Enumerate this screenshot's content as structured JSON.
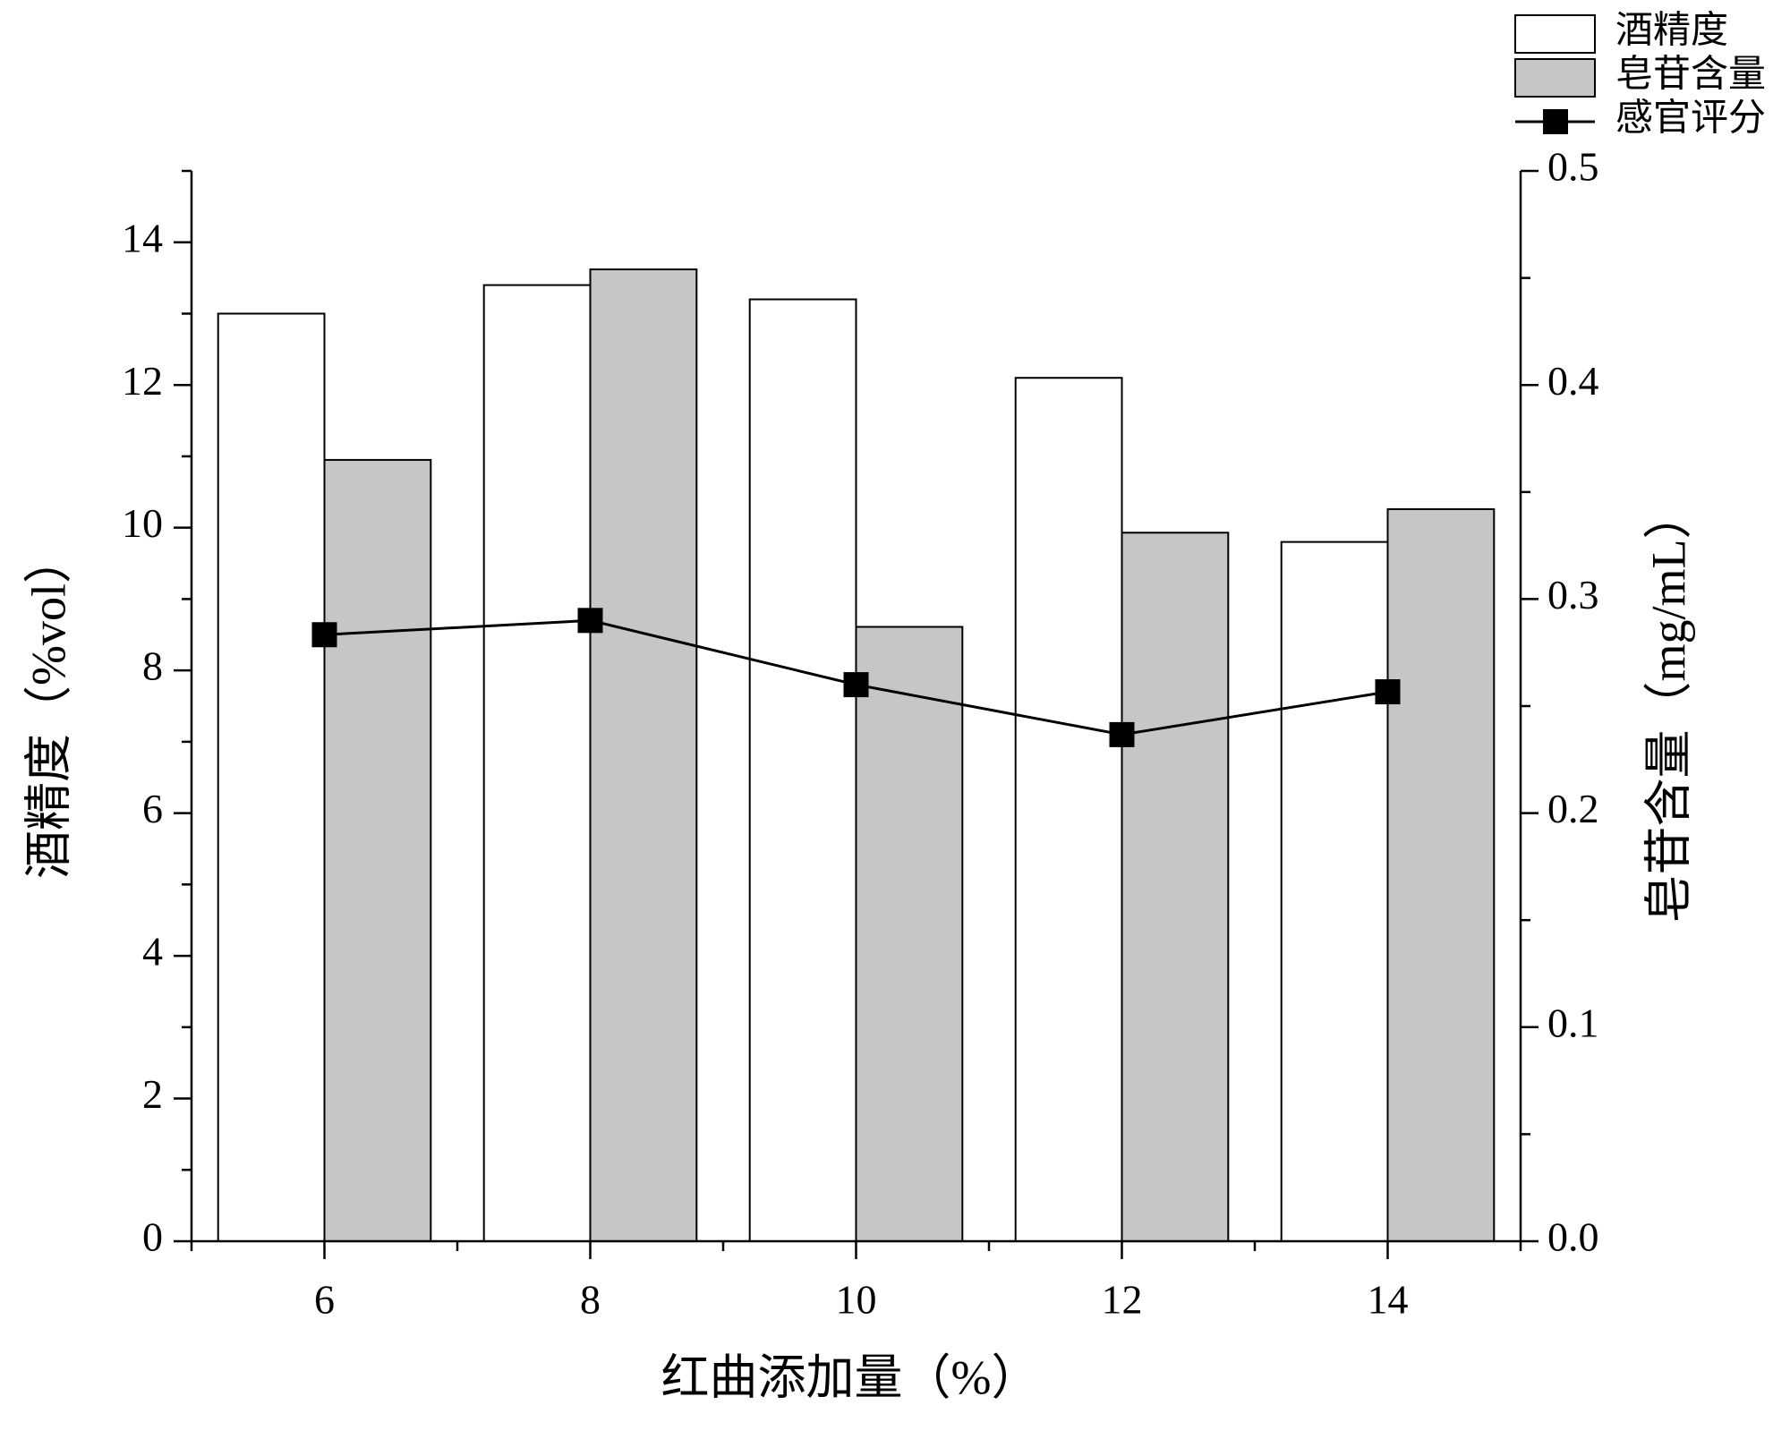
{
  "chart_data": {
    "type": "bar",
    "x_label": "红曲添加量（%）",
    "y_label": "酒精度（%vol）",
    "y2_label": "皂苷含量（mg/mL）",
    "x": [
      6,
      8,
      10,
      12,
      14
    ],
    "xlim": [
      5,
      15
    ],
    "xticks": [
      6,
      8,
      10,
      12,
      14
    ],
    "ylim": [
      0,
      15
    ],
    "yticks": [
      0,
      2,
      4,
      6,
      8,
      10,
      12,
      14
    ],
    "y2lim": [
      0,
      0.5
    ],
    "y2ticks": [
      {
        "value": 0,
        "label": "0.0"
      },
      0.1,
      0.2,
      0.3,
      0.4,
      0.5
    ],
    "series": [
      {
        "name": "酒精度",
        "type": "bar",
        "color": "#ffffff",
        "values": [
          13.0,
          13.4,
          13.2,
          12.1,
          9.8
        ]
      },
      {
        "name": "皂苷含量",
        "type": "bar",
        "color": "#c6c6c6",
        "axis": "y2",
        "values": [
          0.365,
          0.454,
          0.287,
          0.331,
          0.342
        ]
      },
      {
        "name": "感官评分",
        "type": "line",
        "color": "#000000",
        "values": [
          8.5,
          8.7,
          7.8,
          7.1,
          7.7
        ]
      }
    ],
    "legend": "top-right"
  }
}
